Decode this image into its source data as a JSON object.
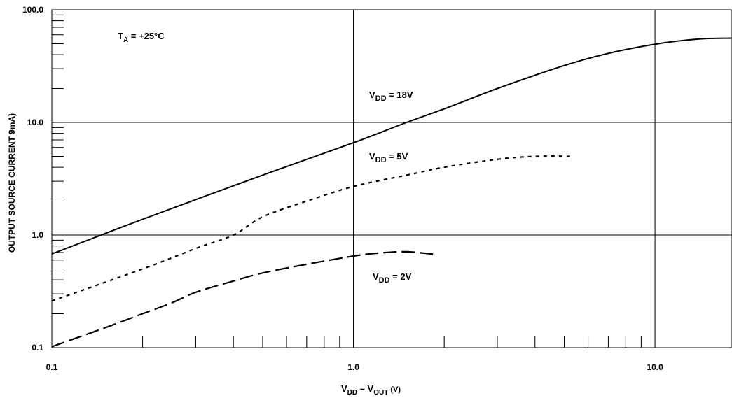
{
  "chart_data": {
    "type": "line",
    "scale": {
      "x": "log",
      "y": "log"
    },
    "xlim": [
      0.1,
      18
    ],
    "ylim": [
      0.1,
      100
    ],
    "grid": true,
    "xlabel": {
      "main": "V",
      "sub1": "DD",
      "mid": " – V",
      "sub2": "OUT",
      "tail": " (V)"
    },
    "ylabel": "OUTPUT SOURCE CURRENT 9mA)",
    "x_ticks": [
      {
        "value": 0.1,
        "label": "0.1"
      },
      {
        "value": 1,
        "label": "1.0"
      },
      {
        "value": 10,
        "label": "10.0"
      }
    ],
    "y_ticks": [
      {
        "value": 0.1,
        "label": "0.1"
      },
      {
        "value": 1,
        "label": "1.0"
      },
      {
        "value": 10,
        "label": "10.0"
      },
      {
        "value": 100,
        "label": "100.0"
      }
    ],
    "annotation": {
      "main": "T",
      "sub": "A",
      "tail": " = +25°C"
    },
    "series": [
      {
        "name": "VDD = 18V",
        "label": {
          "main": "V",
          "sub": "DD",
          "tail": " = 18V"
        },
        "style": "solid",
        "x": [
          0.1,
          0.2,
          0.5,
          1.0,
          1.5,
          2.0,
          3.0,
          5.0,
          7.0,
          10.0,
          14.0,
          18.0
        ],
        "y": [
          0.68,
          1.38,
          3.4,
          6.6,
          10.0,
          13.2,
          20.0,
          32.0,
          41.0,
          49.5,
          55.0,
          56.0
        ]
      },
      {
        "name": "VDD = 5V",
        "label": {
          "main": "V",
          "sub": "DD",
          "tail": " = 5V"
        },
        "style": "dotted",
        "x": [
          0.1,
          0.2,
          0.3,
          0.4,
          0.5,
          0.7,
          1.0,
          1.5,
          2.0,
          3.0,
          4.0,
          5.3
        ],
        "y": [
          0.26,
          0.5,
          0.76,
          1.0,
          1.45,
          2.0,
          2.7,
          3.4,
          4.0,
          4.7,
          5.0,
          5.0
        ]
      },
      {
        "name": "VDD = 2V",
        "label": {
          "main": "V",
          "sub": "DD",
          "tail": " = 2V"
        },
        "style": "dashed",
        "x": [
          0.1,
          0.15,
          0.2,
          0.25,
          0.3,
          0.4,
          0.5,
          0.7,
          1.0,
          1.2,
          1.5,
          1.9
        ],
        "y": [
          0.102,
          0.15,
          0.2,
          0.25,
          0.31,
          0.39,
          0.46,
          0.55,
          0.65,
          0.69,
          0.71,
          0.67
        ]
      }
    ]
  }
}
